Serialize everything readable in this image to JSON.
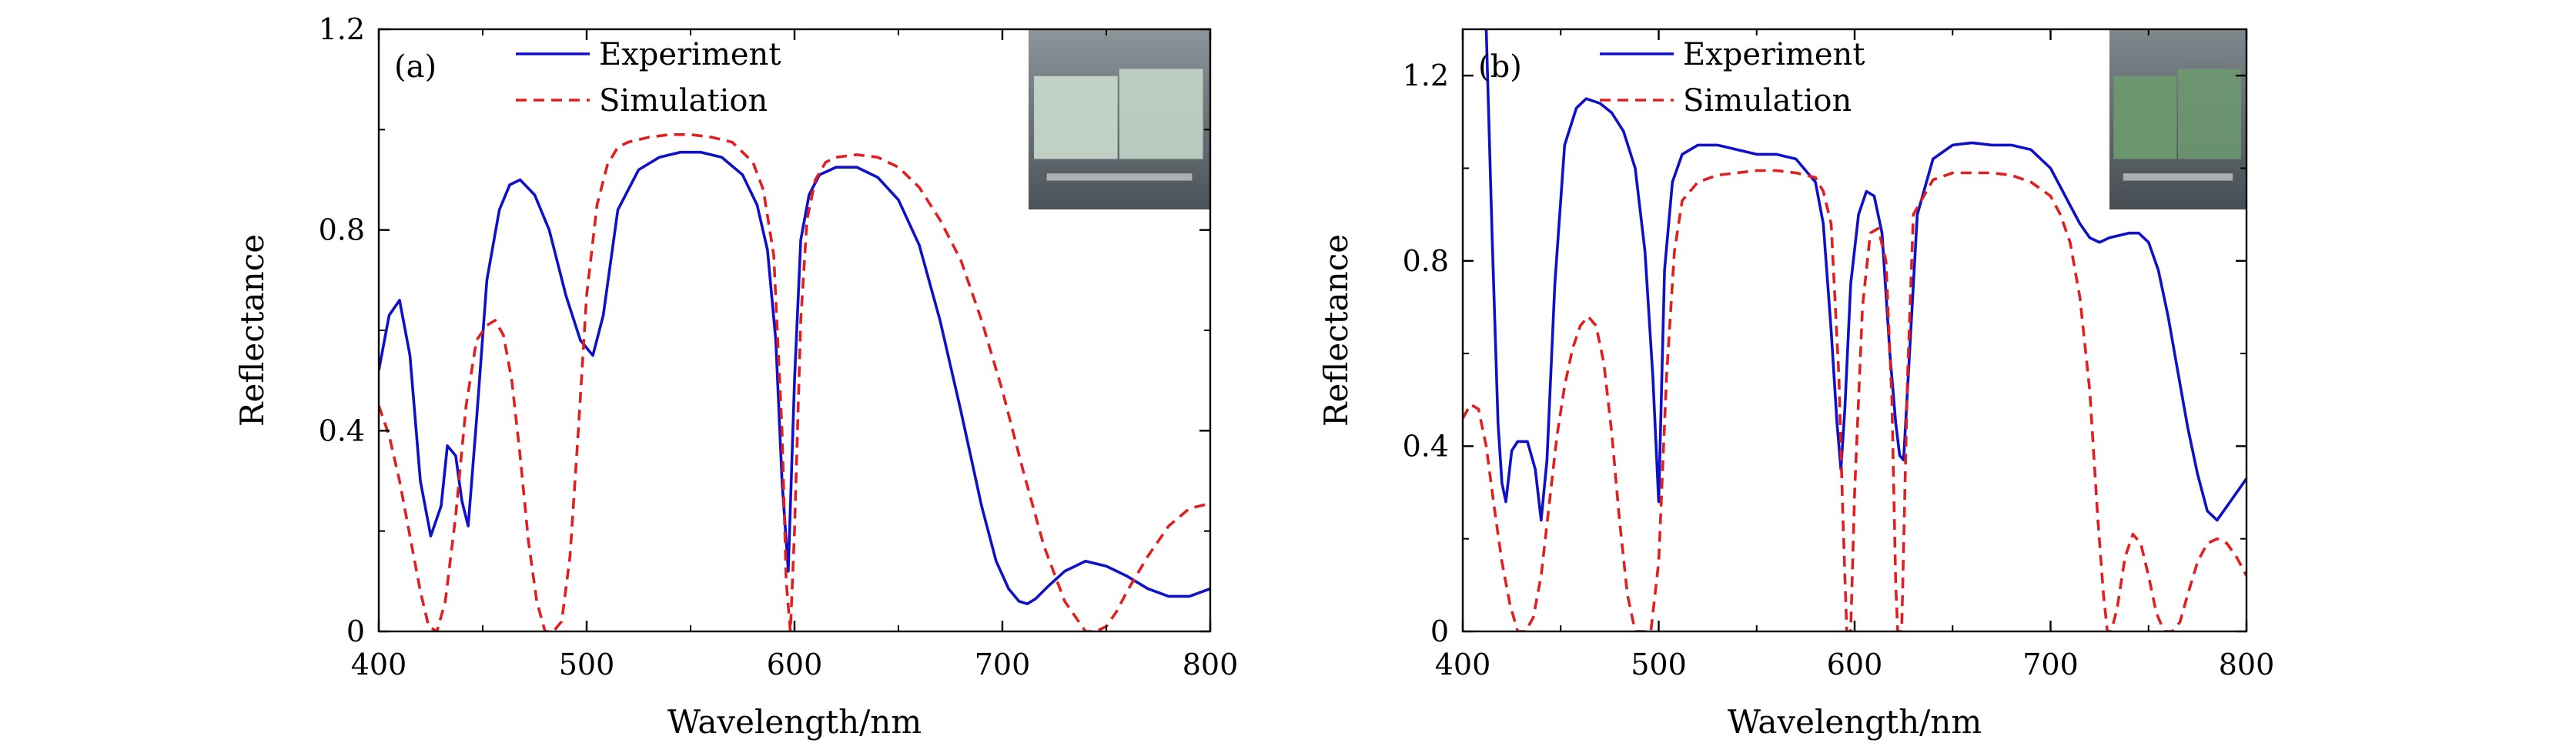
{
  "chart_data": [
    {
      "type": "line",
      "panel_label": "(a)",
      "xlabel": "Wavelength/nm",
      "ylabel": "Reflectance",
      "xlim": [
        400,
        800
      ],
      "ylim": [
        0,
        1.2
      ],
      "xticks": [
        "400",
        "500",
        "600",
        "700",
        "800"
      ],
      "yticks": [
        "0",
        "0.4",
        "0.8",
        "1.2"
      ],
      "legend_position": "top-left",
      "grid": false,
      "has_inset_photo": true,
      "series": [
        {
          "name": "Experiment",
          "color": "#1010c8",
          "style": "solid",
          "x": [
            400,
            405,
            410,
            415,
            420,
            425,
            430,
            433,
            437,
            440,
            443,
            447,
            452,
            458,
            463,
            468,
            475,
            482,
            490,
            497,
            503,
            508,
            515,
            525,
            535,
            545,
            555,
            565,
            575,
            582,
            587,
            591,
            594,
            597,
            600,
            603,
            607,
            612,
            620,
            630,
            640,
            650,
            660,
            670,
            680,
            690,
            697,
            703,
            708,
            712,
            716,
            722,
            730,
            740,
            750,
            760,
            770,
            780,
            790,
            800
          ],
          "y": [
            0.52,
            0.63,
            0.66,
            0.55,
            0.3,
            0.19,
            0.25,
            0.37,
            0.35,
            0.26,
            0.21,
            0.42,
            0.7,
            0.84,
            0.89,
            0.9,
            0.87,
            0.8,
            0.67,
            0.58,
            0.55,
            0.63,
            0.84,
            0.92,
            0.945,
            0.955,
            0.955,
            0.945,
            0.91,
            0.85,
            0.76,
            0.58,
            0.3,
            0.12,
            0.5,
            0.78,
            0.87,
            0.91,
            0.925,
            0.925,
            0.905,
            0.86,
            0.77,
            0.62,
            0.44,
            0.25,
            0.14,
            0.085,
            0.06,
            0.055,
            0.065,
            0.09,
            0.12,
            0.14,
            0.13,
            0.11,
            0.085,
            0.07,
            0.07,
            0.085
          ]
        },
        {
          "name": "Simulation",
          "color": "#e02020",
          "style": "dashed",
          "x": [
            400,
            405,
            410,
            415,
            420,
            424,
            428,
            432,
            437,
            442,
            447,
            452,
            456,
            460,
            464,
            468,
            472,
            476,
            480,
            484,
            488,
            492,
            496,
            500,
            505,
            510,
            515,
            520,
            530,
            540,
            550,
            560,
            570,
            580,
            585,
            590,
            594,
            596,
            598,
            600,
            603,
            606,
            610,
            615,
            620,
            630,
            640,
            650,
            660,
            670,
            680,
            690,
            700,
            710,
            720,
            730,
            740,
            745,
            750,
            755,
            760,
            770,
            780,
            790,
            800
          ],
          "y": [
            0.45,
            0.39,
            0.3,
            0.19,
            0.08,
            0.01,
            0.0,
            0.06,
            0.23,
            0.45,
            0.58,
            0.61,
            0.62,
            0.59,
            0.5,
            0.35,
            0.18,
            0.06,
            0.0,
            0.0,
            0.02,
            0.15,
            0.4,
            0.67,
            0.85,
            0.93,
            0.965,
            0.975,
            0.985,
            0.99,
            0.99,
            0.985,
            0.975,
            0.935,
            0.88,
            0.75,
            0.4,
            0.1,
            0.0,
            0.2,
            0.62,
            0.82,
            0.9,
            0.935,
            0.945,
            0.95,
            0.945,
            0.925,
            0.885,
            0.82,
            0.74,
            0.62,
            0.48,
            0.32,
            0.17,
            0.06,
            0.0,
            0.0,
            0.01,
            0.04,
            0.08,
            0.15,
            0.21,
            0.245,
            0.255
          ]
        }
      ]
    },
    {
      "type": "line",
      "panel_label": "(b)",
      "xlabel": "Wavelength/nm",
      "ylabel": "Reflectance",
      "xlim": [
        400,
        800
      ],
      "ylim": [
        0,
        1.3
      ],
      "xticks": [
        "400",
        "500",
        "600",
        "700",
        "800"
      ],
      "yticks": [
        "0",
        "0.4",
        "0.8",
        "1.2"
      ],
      "legend_position": "top-left",
      "grid": false,
      "has_inset_photo": true,
      "series": [
        {
          "name": "Experiment",
          "color": "#1010c8",
          "style": "solid",
          "x": [
            412,
            415,
            418,
            420,
            422,
            425,
            428,
            433,
            437,
            440,
            443,
            447,
            452,
            458,
            463,
            470,
            476,
            482,
            488,
            493,
            497,
            500,
            503,
            507,
            512,
            520,
            530,
            540,
            550,
            560,
            570,
            580,
            584,
            588,
            591,
            593,
            595,
            598,
            602,
            606,
            610,
            614,
            618,
            621,
            623,
            625,
            628,
            632,
            640,
            650,
            660,
            670,
            680,
            690,
            700,
            705,
            710,
            715,
            720,
            725,
            730,
            740,
            745,
            750,
            755,
            760,
            765,
            770,
            775,
            780,
            785,
            790,
            795,
            800
          ],
          "y": [
            1.3,
            0.85,
            0.45,
            0.32,
            0.28,
            0.39,
            0.41,
            0.41,
            0.35,
            0.24,
            0.37,
            0.75,
            1.05,
            1.13,
            1.15,
            1.14,
            1.12,
            1.08,
            1.0,
            0.82,
            0.55,
            0.28,
            0.78,
            0.97,
            1.03,
            1.05,
            1.05,
            1.04,
            1.03,
            1.03,
            1.02,
            0.97,
            0.88,
            0.65,
            0.45,
            0.35,
            0.48,
            0.75,
            0.9,
            0.95,
            0.94,
            0.86,
            0.6,
            0.45,
            0.38,
            0.37,
            0.6,
            0.9,
            1.02,
            1.05,
            1.055,
            1.05,
            1.05,
            1.04,
            1.0,
            0.96,
            0.92,
            0.88,
            0.85,
            0.84,
            0.85,
            0.86,
            0.86,
            0.84,
            0.78,
            0.68,
            0.56,
            0.44,
            0.34,
            0.26,
            0.24,
            0.27,
            0.3,
            0.33
          ]
        },
        {
          "name": "Simulation",
          "color": "#e02020",
          "style": "dashed",
          "x": [
            400,
            404,
            408,
            412,
            416,
            420,
            424,
            428,
            432,
            436,
            440,
            444,
            448,
            452,
            456,
            460,
            464,
            468,
            472,
            476,
            480,
            484,
            488,
            492,
            496,
            500,
            504,
            508,
            512,
            520,
            530,
            540,
            550,
            560,
            570,
            580,
            584,
            588,
            592,
            594,
            596,
            597,
            598,
            600,
            604,
            608,
            612,
            616,
            619,
            621,
            622,
            624,
            627,
            630,
            640,
            650,
            660,
            670,
            680,
            690,
            700,
            705,
            710,
            715,
            720,
            724,
            727,
            729,
            731,
            734,
            738,
            742,
            746,
            750,
            754,
            758,
            762,
            766,
            770,
            775,
            780,
            785,
            790,
            795,
            800
          ],
          "y": [
            0.46,
            0.49,
            0.48,
            0.4,
            0.27,
            0.15,
            0.06,
            0.0,
            0.0,
            0.03,
            0.12,
            0.27,
            0.42,
            0.53,
            0.61,
            0.66,
            0.68,
            0.66,
            0.58,
            0.43,
            0.24,
            0.08,
            0.0,
            0.0,
            0.0,
            0.15,
            0.55,
            0.82,
            0.93,
            0.97,
            0.985,
            0.99,
            0.995,
            0.995,
            0.99,
            0.98,
            0.95,
            0.88,
            0.55,
            0.25,
            0.0,
            0.0,
            0.0,
            0.3,
            0.7,
            0.86,
            0.87,
            0.8,
            0.5,
            0.1,
            0.0,
            0.0,
            0.55,
            0.9,
            0.975,
            0.99,
            0.99,
            0.99,
            0.985,
            0.97,
            0.94,
            0.9,
            0.84,
            0.72,
            0.52,
            0.25,
            0.08,
            0.0,
            0.0,
            0.05,
            0.16,
            0.21,
            0.19,
            0.12,
            0.04,
            0.0,
            0.0,
            0.02,
            0.08,
            0.15,
            0.19,
            0.2,
            0.19,
            0.16,
            0.12
          ]
        }
      ]
    }
  ]
}
